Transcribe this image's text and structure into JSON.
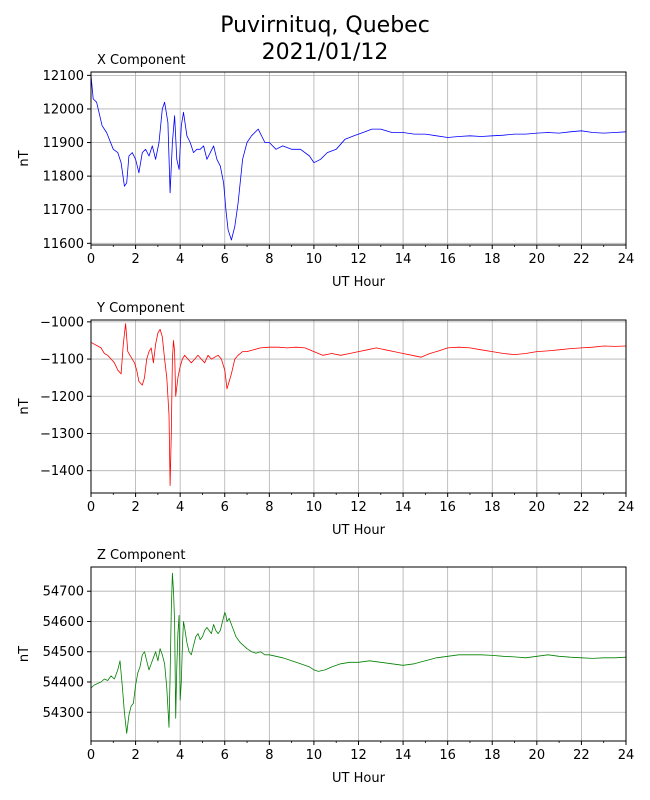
{
  "title": {
    "line1": "Puvirnituq, Quebec",
    "line2": "2021/01/12"
  },
  "chart_data": [
    {
      "type": "line",
      "title": "X Component",
      "xlabel": "UT Hour",
      "ylabel": "nT",
      "xlim": [
        0,
        24
      ],
      "ylim": [
        11595,
        12110
      ],
      "xticks": [
        0,
        2,
        4,
        6,
        8,
        10,
        12,
        14,
        16,
        18,
        20,
        22,
        24
      ],
      "yticks": [
        11600,
        11700,
        11800,
        11900,
        12000,
        12100
      ],
      "grid": true,
      "color": "#0000ff",
      "series": [
        {
          "x": [
            0,
            0.1,
            0.25,
            0.5,
            0.7,
            1.0,
            1.2,
            1.35,
            1.5,
            1.6,
            1.7,
            1.85,
            2.0,
            2.15,
            2.3,
            2.45,
            2.6,
            2.75,
            2.9,
            3.05,
            3.2,
            3.3,
            3.45,
            3.55,
            3.65,
            3.75,
            3.85,
            3.95,
            4.05,
            4.15,
            4.3,
            4.45,
            4.6,
            4.75,
            4.9,
            5.05,
            5.2,
            5.35,
            5.5,
            5.65,
            5.8,
            5.95,
            6.05,
            6.15,
            6.3,
            6.45,
            6.6,
            6.8,
            7.0,
            7.2,
            7.5,
            7.8,
            8.0,
            8.3,
            8.6,
            9.0,
            9.4,
            9.8,
            10.0,
            10.3,
            10.6,
            11.0,
            11.4,
            11.8,
            12.2,
            12.6,
            13.0,
            13.5,
            14.0,
            14.5,
            15.0,
            15.5,
            16.0,
            16.5,
            17.0,
            17.5,
            18.0,
            18.5,
            19.0,
            19.5,
            20.0,
            20.5,
            21.0,
            21.5,
            22.0,
            22.5,
            23.0,
            23.5,
            24.0
          ],
          "y": [
            12100,
            12030,
            12020,
            11950,
            11930,
            11880,
            11870,
            11840,
            11770,
            11780,
            11860,
            11870,
            11850,
            11810,
            11870,
            11880,
            11860,
            11890,
            11850,
            11900,
            12000,
            12020,
            11960,
            11750,
            11900,
            11980,
            11850,
            11820,
            11950,
            11990,
            11920,
            11900,
            11870,
            11880,
            11880,
            11890,
            11850,
            11870,
            11890,
            11850,
            11830,
            11780,
            11700,
            11640,
            11610,
            11650,
            11720,
            11850,
            11900,
            11920,
            11940,
            11900,
            11900,
            11880,
            11890,
            11880,
            11880,
            11860,
            11840,
            11850,
            11870,
            11880,
            11910,
            11920,
            11930,
            11940,
            11940,
            11930,
            11930,
            11925,
            11925,
            11920,
            11915,
            11918,
            11920,
            11918,
            11920,
            11922,
            11925,
            11925,
            11928,
            11930,
            11928,
            11932,
            11935,
            11930,
            11928,
            11930,
            11932
          ]
        }
      ]
    },
    {
      "type": "line",
      "title": "Y Component",
      "xlabel": "UT Hour",
      "ylabel": "nT",
      "xlim": [
        0,
        24
      ],
      "ylim": [
        -1460,
        -995
      ],
      "xticks": [
        0,
        2,
        4,
        6,
        8,
        10,
        12,
        14,
        16,
        18,
        20,
        22,
        24
      ],
      "yticks": [
        -1000,
        -1100,
        -1200,
        -1300,
        -1400
      ],
      "grid": true,
      "color": "#ff0000",
      "series": [
        {
          "x": [
            0,
            0.15,
            0.3,
            0.45,
            0.6,
            0.75,
            0.9,
            1.05,
            1.2,
            1.35,
            1.45,
            1.55,
            1.65,
            1.75,
            1.85,
            1.95,
            2.05,
            2.15,
            2.3,
            2.4,
            2.5,
            2.6,
            2.7,
            2.8,
            2.9,
            3.0,
            3.1,
            3.2,
            3.3,
            3.4,
            3.5,
            3.55,
            3.6,
            3.65,
            3.7,
            3.75,
            3.8,
            3.9,
            4.0,
            4.1,
            4.2,
            4.35,
            4.5,
            4.65,
            4.8,
            4.95,
            5.1,
            5.25,
            5.4,
            5.55,
            5.7,
            5.85,
            6.0,
            6.1,
            6.2,
            6.3,
            6.45,
            6.6,
            6.8,
            7.0,
            7.3,
            7.6,
            8.0,
            8.4,
            8.8,
            9.2,
            9.6,
            10.0,
            10.4,
            10.8,
            11.2,
            11.6,
            12.0,
            12.4,
            12.8,
            13.2,
            13.6,
            14.0,
            14.4,
            14.8,
            15.2,
            15.6,
            16.0,
            16.5,
            17.0,
            17.5,
            18.0,
            18.5,
            19.0,
            19.5,
            20.0,
            20.5,
            21.0,
            21.5,
            22.0,
            22.5,
            23.0,
            23.5,
            24.0
          ],
          "y": [
            -1055,
            -1060,
            -1065,
            -1070,
            -1085,
            -1090,
            -1100,
            -1110,
            -1130,
            -1140,
            -1060,
            -1005,
            -1080,
            -1090,
            -1100,
            -1110,
            -1130,
            -1160,
            -1170,
            -1150,
            -1100,
            -1080,
            -1070,
            -1110,
            -1060,
            -1030,
            -1020,
            -1040,
            -1100,
            -1150,
            -1250,
            -1440,
            -1300,
            -1100,
            -1050,
            -1080,
            -1200,
            -1150,
            -1120,
            -1100,
            -1090,
            -1100,
            -1110,
            -1100,
            -1090,
            -1100,
            -1110,
            -1090,
            -1100,
            -1095,
            -1090,
            -1100,
            -1130,
            -1180,
            -1160,
            -1140,
            -1100,
            -1090,
            -1080,
            -1080,
            -1075,
            -1070,
            -1068,
            -1068,
            -1070,
            -1068,
            -1070,
            -1080,
            -1090,
            -1085,
            -1090,
            -1085,
            -1080,
            -1075,
            -1070,
            -1075,
            -1080,
            -1085,
            -1090,
            -1095,
            -1085,
            -1078,
            -1070,
            -1068,
            -1070,
            -1075,
            -1080,
            -1085,
            -1088,
            -1085,
            -1080,
            -1078,
            -1075,
            -1072,
            -1070,
            -1068,
            -1065,
            -1066,
            -1065
          ]
        }
      ]
    },
    {
      "type": "line",
      "title": "Z Component",
      "xlabel": "UT Hour",
      "ylabel": "nT",
      "xlim": [
        0,
        24
      ],
      "ylim": [
        54205,
        54780
      ],
      "xticks": [
        0,
        2,
        4,
        6,
        8,
        10,
        12,
        14,
        16,
        18,
        20,
        22,
        24
      ],
      "yticks": [
        54300,
        54400,
        54500,
        54600,
        54700
      ],
      "grid": true,
      "color": "#008000",
      "series": [
        {
          "x": [
            0,
            0.15,
            0.3,
            0.45,
            0.6,
            0.75,
            0.9,
            1.05,
            1.2,
            1.3,
            1.4,
            1.5,
            1.6,
            1.7,
            1.8,
            1.9,
            2.0,
            2.1,
            2.2,
            2.3,
            2.4,
            2.5,
            2.6,
            2.7,
            2.8,
            2.9,
            3.0,
            3.1,
            3.2,
            3.3,
            3.4,
            3.5,
            3.55,
            3.6,
            3.65,
            3.7,
            3.75,
            3.8,
            3.85,
            3.9,
            3.95,
            4.0,
            4.05,
            4.1,
            4.15,
            4.2,
            4.3,
            4.4,
            4.5,
            4.6,
            4.7,
            4.8,
            4.9,
            5.0,
            5.1,
            5.2,
            5.3,
            5.4,
            5.5,
            5.6,
            5.7,
            5.8,
            5.9,
            6.0,
            6.05,
            6.1,
            6.2,
            6.3,
            6.4,
            6.5,
            6.6,
            6.7,
            6.85,
            7.0,
            7.2,
            7.4,
            7.6,
            7.8,
            8.0,
            8.3,
            8.6,
            9.0,
            9.4,
            9.8,
            10.0,
            10.2,
            10.5,
            10.8,
            11.2,
            11.6,
            12.0,
            12.5,
            13.0,
            13.5,
            14.0,
            14.5,
            15.0,
            15.5,
            16.0,
            16.5,
            17.0,
            17.5,
            18.0,
            18.5,
            19.0,
            19.5,
            20.0,
            20.5,
            21.0,
            21.5,
            22.0,
            22.5,
            23.0,
            23.5,
            24.0
          ],
          "y": [
            54380,
            54390,
            54395,
            54400,
            54410,
            54405,
            54420,
            54410,
            54440,
            54470,
            54390,
            54300,
            54230,
            54290,
            54320,
            54330,
            54390,
            54430,
            54450,
            54490,
            54500,
            54470,
            54440,
            54460,
            54480,
            54500,
            54470,
            54510,
            54490,
            54460,
            54380,
            54250,
            54420,
            54640,
            54760,
            54700,
            54600,
            54280,
            54450,
            54560,
            54620,
            54340,
            54400,
            54520,
            54600,
            54580,
            54530,
            54500,
            54490,
            54520,
            54550,
            54560,
            54540,
            54550,
            54570,
            54580,
            54570,
            54560,
            54590,
            54570,
            54560,
            54570,
            54600,
            54630,
            54620,
            54600,
            54610,
            54590,
            54570,
            54550,
            54540,
            54530,
            54520,
            54510,
            54500,
            54495,
            54500,
            54490,
            54490,
            54485,
            54480,
            54470,
            54460,
            54450,
            54440,
            54435,
            54440,
            54450,
            54460,
            54465,
            54465,
            54470,
            54465,
            54460,
            54455,
            54460,
            54470,
            54480,
            54485,
            54490,
            54490,
            54490,
            54488,
            54485,
            54483,
            54480,
            54485,
            54490,
            54485,
            54482,
            54480,
            54478,
            54480,
            54480,
            54482
          ]
        }
      ]
    }
  ]
}
